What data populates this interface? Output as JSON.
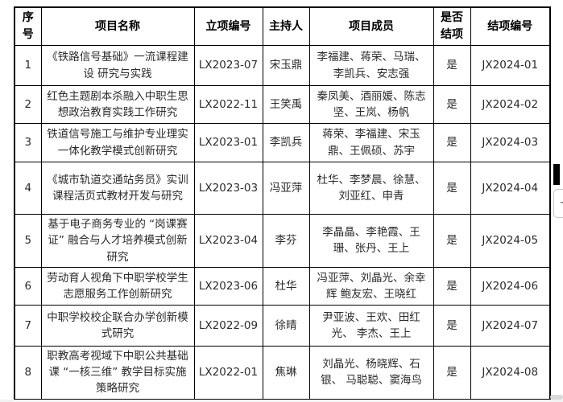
{
  "table": {
    "headers": [
      "序号",
      "项目名称",
      "立项编号",
      "主持人",
      "项目成员",
      "是否结项",
      "结项编号"
    ],
    "rows": [
      {
        "no": "1",
        "name": "《铁路信号基础》一流课程建设 研究与实践",
        "lx_code": "LX2023-07",
        "leader": "宋玉鼎",
        "members": "李福建、蒋荣、马瑞、李凯兵、安志强",
        "concluded": "是",
        "jx_code": "JX2024-01"
      },
      {
        "no": "2",
        "name": "红色主题剧本杀融入中职生思想政治教育实践工作研究",
        "lx_code": "LX2022-11",
        "leader": "王笑禹",
        "members": "秦凤美、酒丽媛、陈志坚、王岚、杨帆",
        "concluded": "是",
        "jx_code": "JX2024-02"
      },
      {
        "no": "3",
        "name": "铁道信号施工与维护专业理实一体化教学模式创新研究",
        "lx_code": "LX2023-01",
        "leader": "李凯兵",
        "members": "蒋荣、李福建、宋玉鼎、王佩硕、苏宇",
        "concluded": "是",
        "jx_code": "JX2024-03"
      },
      {
        "no": "4",
        "name": "《城市轨道交通站务员》实训课程活页式教材开发与研究",
        "lx_code": "LX2023-03",
        "leader": "冯亚萍",
        "members": "杜华、李梦晨、徐慧、刘亚红、申青",
        "concluded": "是",
        "jx_code": "JX2024-04"
      },
      {
        "no": "5",
        "name": "基于电子商务专业的 “岗课赛证” 融合与人才培养模式创新研究",
        "lx_code": "LX2023-04",
        "leader": "李芬",
        "members": "李晶晶、李艳霞、王珊、张丹、王上",
        "concluded": "是",
        "jx_code": "JX2024-05"
      },
      {
        "no": "6",
        "name": "劳动育人视角下中职学校学生志愿服务工作创新研究",
        "lx_code": "LX2023-06",
        "leader": "杜华",
        "members": "冯亚萍、刘晶光、余幸辉 鲍友宏、王晓红",
        "concluded": "是",
        "jx_code": "JX2024-06"
      },
      {
        "no": "7",
        "name": "中职学校校企联合办学创新模式研究",
        "lx_code": "LX2022-09",
        "leader": "徐晴",
        "members": "尹亚波、王欢、田红光、 李杰、王上",
        "concluded": "是",
        "jx_code": "JX2024-07"
      },
      {
        "no": "8",
        "name": "职教高考视域下中职公共基础课 “一核三维” 教学目标实施策略研究",
        "lx_code": "LX2022-01",
        "leader": "焦琳",
        "members": "刘晶光、杨晓辉、石银、 马聪聪、窦海鸟",
        "concluded": "是",
        "jx_code": "JX2024-08"
      }
    ]
  },
  "side_controls": {
    "plus_label": "+"
  },
  "colors": {
    "border": "#000000",
    "text": "#2b2b2b",
    "scroll_thumb": "#000000",
    "button_border": "#c6c6c6"
  }
}
